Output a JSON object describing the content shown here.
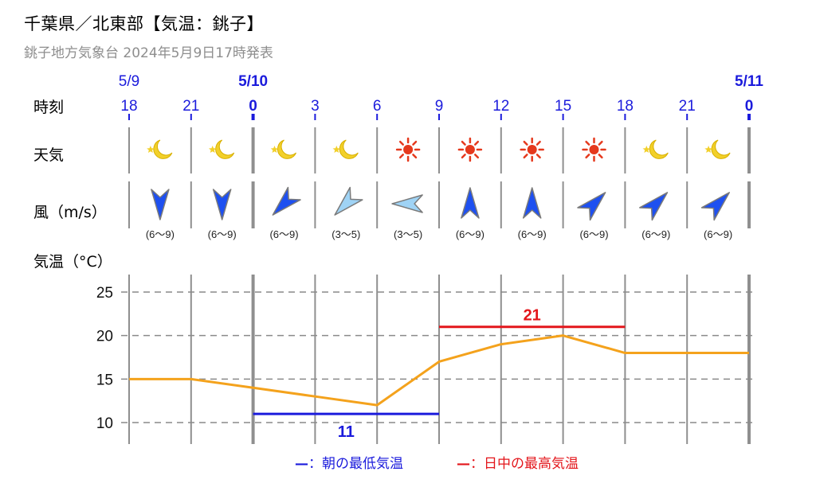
{
  "header": {
    "title": "千葉県／北東部【気温：銚子】",
    "subtitle": "銚子地方気象台 2024年5月9日17時発表"
  },
  "row_labels": {
    "time": "時刻",
    "weather": "天気",
    "wind": "風（m/s）",
    "temp": "気温（°C）"
  },
  "dates": [
    {
      "label": "5/9",
      "col": 0,
      "bold": false
    },
    {
      "label": "5/10",
      "col": 2,
      "bold": true
    },
    {
      "label": "5/11",
      "col": 10,
      "bold": true
    }
  ],
  "hours": [
    "18",
    "21",
    "0",
    "3",
    "6",
    "9",
    "12",
    "15",
    "18",
    "21",
    "0"
  ],
  "weather": [
    "moon-icon",
    "moon-icon",
    "moon-icon",
    "moon-icon",
    "sun-icon",
    "sun-icon",
    "sun-icon",
    "sun-icon",
    "moon-icon",
    "moon-icon"
  ],
  "wind": [
    {
      "dir_deg": 0,
      "speed": "(6〜9)",
      "strength": "strong"
    },
    {
      "dir_deg": 0,
      "speed": "(6〜9)",
      "strength": "strong"
    },
    {
      "dir_deg": 45,
      "speed": "(6〜9)",
      "strength": "strong"
    },
    {
      "dir_deg": 45,
      "speed": "(3〜5)",
      "strength": "light"
    },
    {
      "dir_deg": 90,
      "speed": "(3〜5)",
      "strength": "light"
    },
    {
      "dir_deg": 180,
      "speed": "(6〜9)",
      "strength": "strong"
    },
    {
      "dir_deg": 180,
      "speed": "(6〜9)",
      "strength": "strong"
    },
    {
      "dir_deg": 225,
      "speed": "(6〜9)",
      "strength": "strong"
    },
    {
      "dir_deg": 225,
      "speed": "(6〜9)",
      "strength": "strong"
    },
    {
      "dir_deg": 225,
      "speed": "(6〜9)",
      "strength": "strong"
    }
  ],
  "chart_data": {
    "type": "line",
    "x": [
      "18",
      "21",
      "0",
      "3",
      "6",
      "9",
      "12",
      "15",
      "18",
      "21",
      "0"
    ],
    "series": [
      {
        "values": [
          15,
          15,
          14,
          13,
          12,
          17,
          19,
          20,
          18,
          18,
          18
        ]
      }
    ],
    "yticks": [
      25,
      20,
      15,
      10
    ],
    "ylim": [
      8,
      27
    ],
    "min_temp": {
      "value": 11,
      "from_col": 2,
      "to_col": 5
    },
    "max_temp": {
      "value": 21,
      "from_col": 5,
      "to_col": 8
    },
    "grid": true
  },
  "legend": {
    "min_dash": "—",
    "min_label": "：朝の最低気温",
    "max_dash": "—",
    "max_label": "：日中の最高気温"
  },
  "colors": {
    "blue": "#1b1bdc",
    "red": "#e3161b",
    "line": "#f4a21c",
    "grid": "#8a8a8a",
    "strong_arrow": "#1e50f0",
    "light_arrow": "#9fd3f5",
    "sun": "#e5391d",
    "moon": "#f2d02a"
  }
}
